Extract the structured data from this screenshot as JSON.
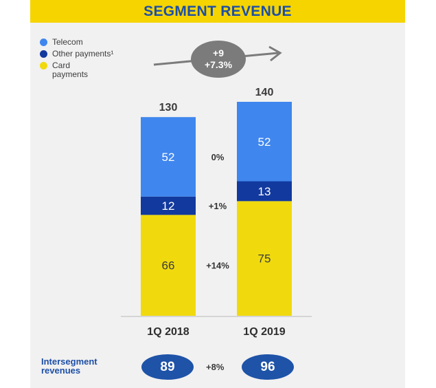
{
  "title": "SEGMENT REVENUE",
  "legend": [
    {
      "label": "Telecom",
      "color": "#3f86ee"
    },
    {
      "label": "Other payments¹",
      "color": "#12399e"
    },
    {
      "label": "Card\npayments",
      "color": "#f0da0e"
    }
  ],
  "growth": {
    "absolute": "+9",
    "percent": "+7.3%"
  },
  "chart_data": {
    "type": "bar",
    "stacked": true,
    "title": "SEGMENT REVENUE",
    "categories": [
      "1Q 2018",
      "1Q 2019"
    ],
    "series": [
      {
        "name": "Card payments",
        "values": [
          66,
          75
        ],
        "color": "#f0da0e",
        "label_color": "#3a3a3a",
        "change": "+14%"
      },
      {
        "name": "Other payments¹",
        "values": [
          12,
          13
        ],
        "color": "#12399e",
        "label_color": "#ffffff",
        "change": "+1%"
      },
      {
        "name": "Telecom",
        "values": [
          52,
          52
        ],
        "color": "#3f86ee",
        "label_color": "#ffffff",
        "change": "0%"
      }
    ],
    "totals": [
      130,
      140
    ],
    "ylim": [
      0,
      140
    ]
  },
  "intersegment": {
    "label": "Intersegment\nrevenues",
    "values": [
      "89",
      "96"
    ],
    "change": "+8%"
  }
}
